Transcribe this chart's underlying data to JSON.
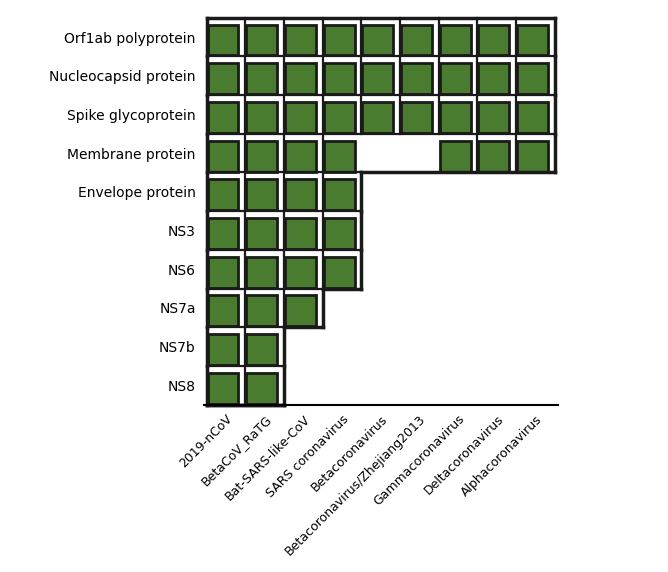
{
  "rows": [
    "Orf1ab polyprotein",
    "Nucleocapsid protein",
    "Spike glycoprotein",
    "Membrane protein",
    "Envelope protein",
    "NS3",
    "NS6",
    "NS7a",
    "NS7b",
    "NS8"
  ],
  "cols": [
    "2019-nCoV",
    "BetaCoV_RaTG",
    "Bat-SARS-like-CoV",
    "SARS coronavirus",
    "Betacoronavirus",
    "Betacoronavirus/Zhejiang2013",
    "Gammacoronavirus",
    "Deltacoronavirus",
    "Alphacoronavirus"
  ],
  "filled": [
    [
      1,
      1,
      1,
      1,
      1,
      1,
      1,
      1,
      1
    ],
    [
      1,
      1,
      1,
      1,
      1,
      1,
      1,
      1,
      1
    ],
    [
      1,
      1,
      1,
      1,
      1,
      1,
      1,
      1,
      1
    ],
    [
      1,
      1,
      1,
      1,
      0,
      0,
      1,
      1,
      1
    ],
    [
      1,
      1,
      1,
      1,
      0,
      0,
      0,
      0,
      0
    ],
    [
      1,
      1,
      1,
      1,
      0,
      0,
      0,
      0,
      0
    ],
    [
      1,
      1,
      1,
      1,
      0,
      0,
      0,
      0,
      0
    ],
    [
      1,
      1,
      1,
      0,
      0,
      0,
      0,
      0,
      0
    ],
    [
      1,
      1,
      0,
      0,
      0,
      0,
      0,
      0,
      0
    ],
    [
      1,
      1,
      0,
      0,
      0,
      0,
      0,
      0,
      0
    ]
  ],
  "cell_color": "#4a7c2f",
  "edge_color": "#1a1a1a",
  "bg_color": "#ffffff",
  "cell_size": 0.85,
  "lw": 2.0
}
